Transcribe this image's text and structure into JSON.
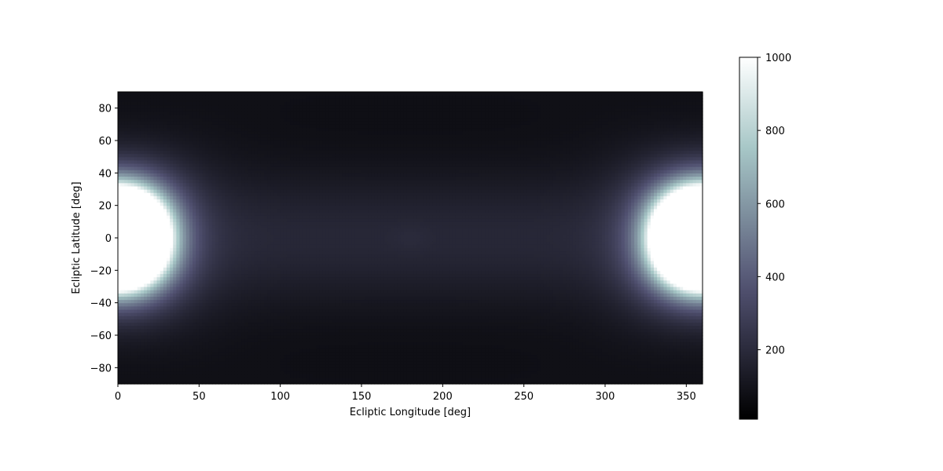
{
  "chart_data": {
    "type": "heatmap",
    "title": "",
    "xlabel": "Ecliptic Longitude [deg]",
    "ylabel": "Ecliptic Latitude [deg]",
    "xlim": [
      0,
      360
    ],
    "ylim": [
      -90,
      90
    ],
    "xticks": [
      0,
      50,
      100,
      150,
      200,
      250,
      300,
      350
    ],
    "yticks": [
      -80,
      -60,
      -40,
      -20,
      0,
      20,
      40,
      60,
      80
    ],
    "colorbar": {
      "colormap": "bone",
      "vmin": 10,
      "vmax": 1000,
      "ticks": [
        200,
        400,
        600,
        800,
        1000
      ]
    },
    "field_description_values": {
      "ecliptic_pole_brightness": 75,
      "antisolar_equator_brightness": 220,
      "saturated_region_brightness": 1000,
      "bright_region_halfwidth_lon_at_equator_deg": 45,
      "bright_region_halfwidth_lat_at_sun_deg": 30
    },
    "grid": false,
    "legend": "none"
  }
}
